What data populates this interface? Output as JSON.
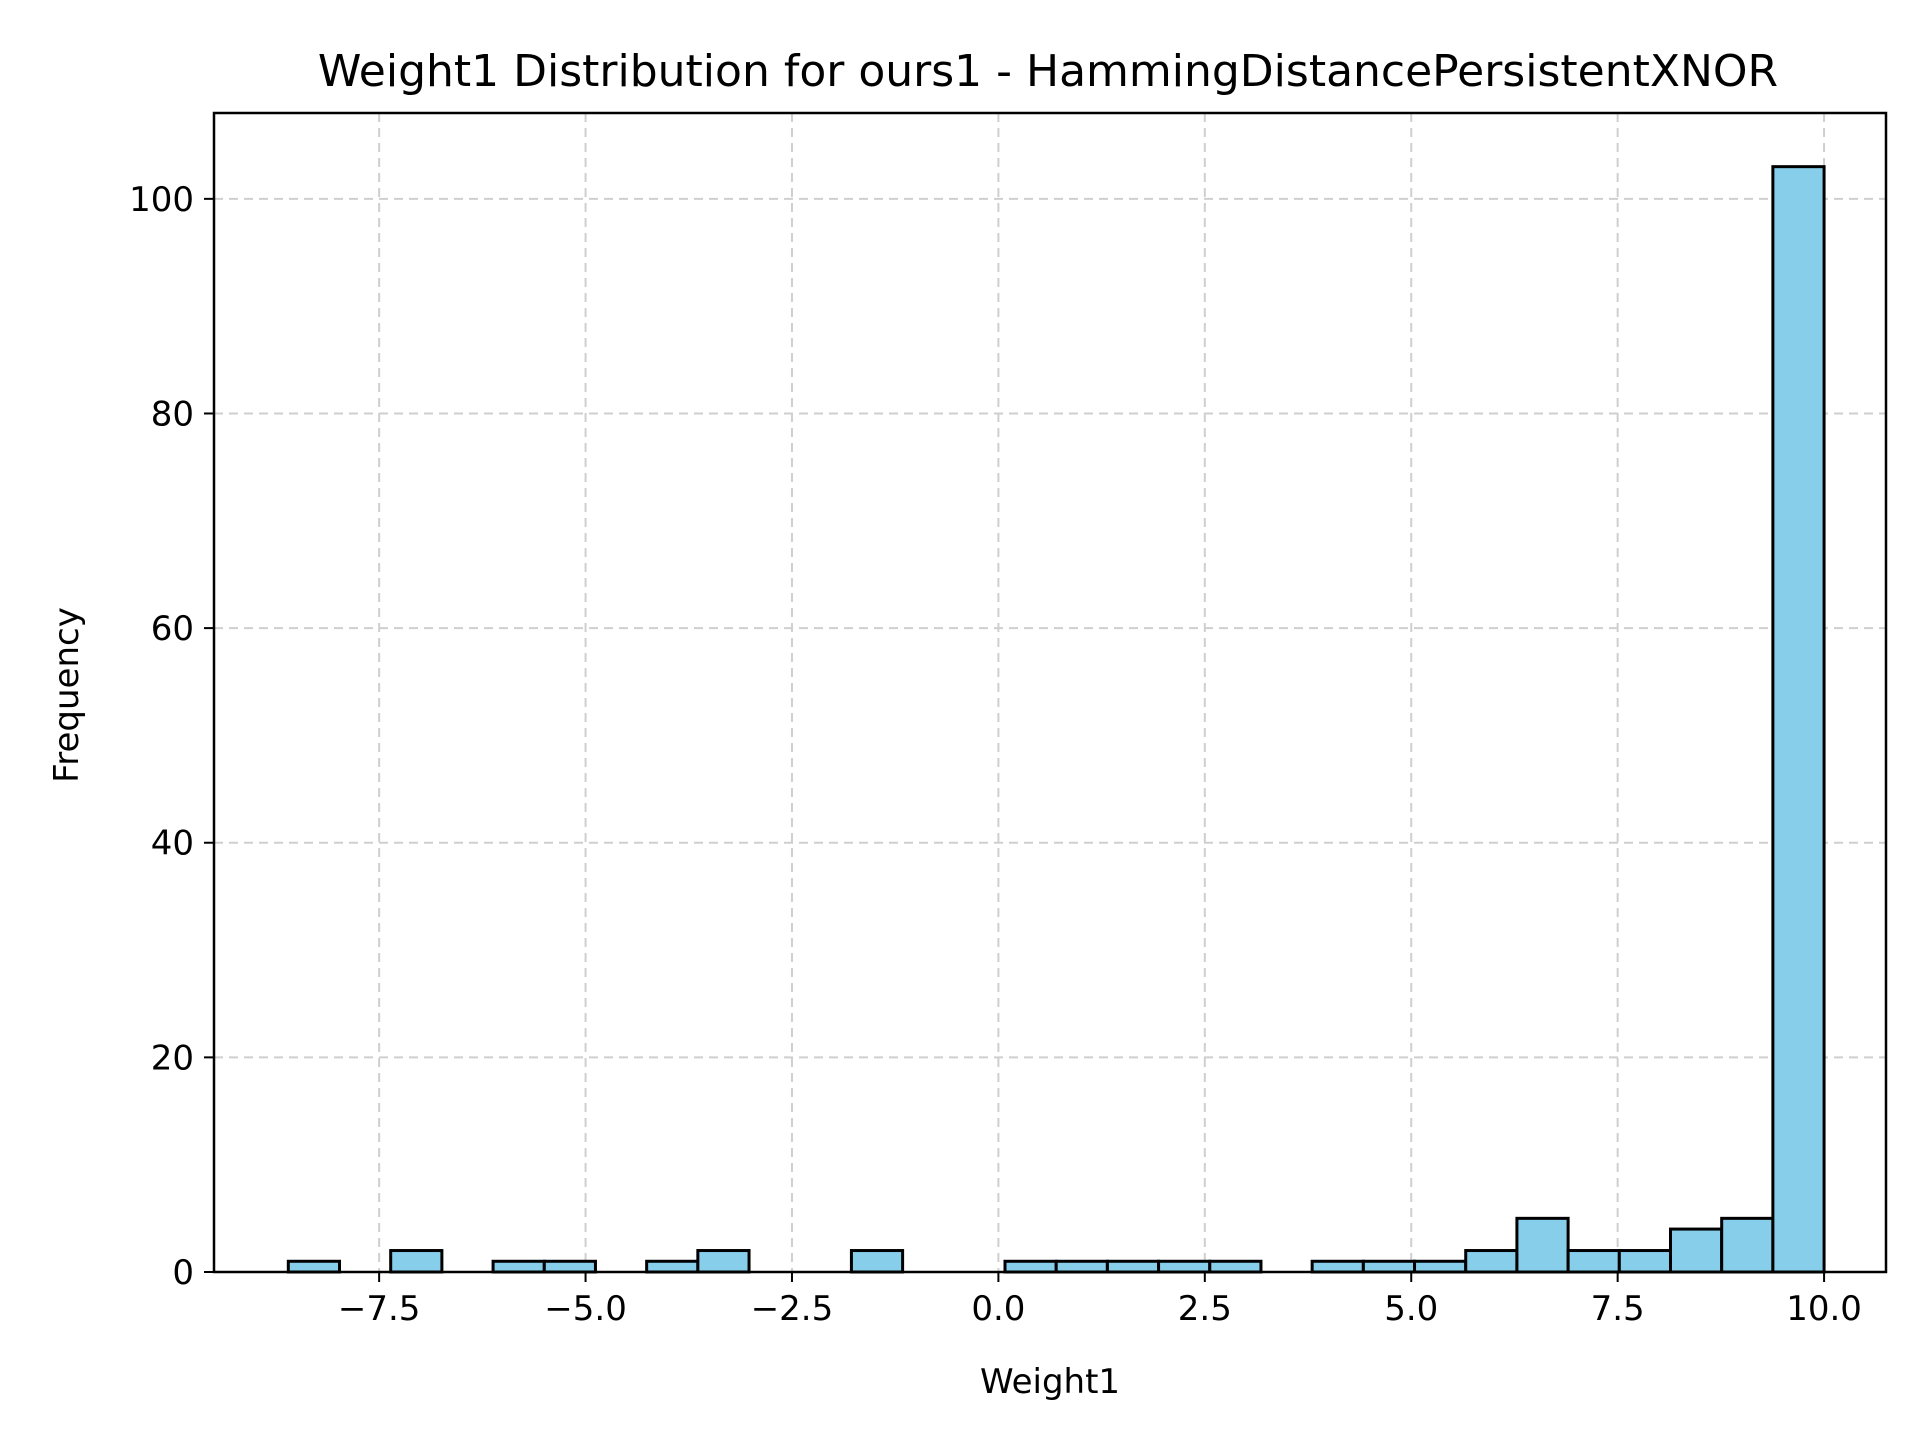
{
  "chart_data": {
    "type": "bar",
    "title": "Weight1 Distribution for ours1 - HammingDistancePersistentXNOR",
    "xlabel": "Weight1",
    "ylabel": "Frequency",
    "xlim": [
      -9.5,
      10.75
    ],
    "ylim": [
      0,
      108
    ],
    "xticks": [
      -7.5,
      -5.0,
      -2.5,
      0.0,
      2.5,
      5.0,
      7.5,
      10.0
    ],
    "xtick_labels": [
      "−7.5",
      "−5.0",
      "−2.5",
      "0.0",
      "2.5",
      "5.0",
      "7.5",
      "10.0"
    ],
    "yticks": [
      0,
      20,
      40,
      60,
      80,
      100
    ],
    "ytick_labels": [
      "0",
      "20",
      "40",
      "60",
      "80",
      "100"
    ],
    "grid": true,
    "bar_color": "#87CEEB",
    "bins": [
      {
        "start": -8.6,
        "end": -7.98,
        "count": 1
      },
      {
        "start": -7.98,
        "end": -7.36,
        "count": 0
      },
      {
        "start": -7.36,
        "end": -6.74,
        "count": 2
      },
      {
        "start": -6.74,
        "end": -6.12,
        "count": 0
      },
      {
        "start": -6.12,
        "end": -5.5,
        "count": 1
      },
      {
        "start": -5.5,
        "end": -4.88,
        "count": 1
      },
      {
        "start": -4.88,
        "end": -4.26,
        "count": 0
      },
      {
        "start": -4.26,
        "end": -3.64,
        "count": 1
      },
      {
        "start": -3.64,
        "end": -3.02,
        "count": 2
      },
      {
        "start": -3.02,
        "end": -2.4,
        "count": 0
      },
      {
        "start": -2.4,
        "end": -1.78,
        "count": 0
      },
      {
        "start": -1.78,
        "end": -1.16,
        "count": 2
      },
      {
        "start": -1.16,
        "end": -0.54,
        "count": 0
      },
      {
        "start": -0.54,
        "end": 0.08,
        "count": 0
      },
      {
        "start": 0.08,
        "end": 0.7,
        "count": 1
      },
      {
        "start": 0.7,
        "end": 1.32,
        "count": 1
      },
      {
        "start": 1.32,
        "end": 1.94,
        "count": 1
      },
      {
        "start": 1.94,
        "end": 2.56,
        "count": 1
      },
      {
        "start": 2.56,
        "end": 3.18,
        "count": 1
      },
      {
        "start": 3.18,
        "end": 3.8,
        "count": 0
      },
      {
        "start": 3.8,
        "end": 4.42,
        "count": 1
      },
      {
        "start": 4.42,
        "end": 5.04,
        "count": 1
      },
      {
        "start": 5.04,
        "end": 5.66,
        "count": 1
      },
      {
        "start": 5.66,
        "end": 6.28,
        "count": 2
      },
      {
        "start": 6.28,
        "end": 6.9,
        "count": 5
      },
      {
        "start": 6.9,
        "end": 7.52,
        "count": 2
      },
      {
        "start": 7.52,
        "end": 8.14,
        "count": 2
      },
      {
        "start": 8.14,
        "end": 8.76,
        "count": 4
      },
      {
        "start": 8.76,
        "end": 9.38,
        "count": 5
      },
      {
        "start": 9.38,
        "end": 10.0,
        "count": 103
      }
    ]
  }
}
